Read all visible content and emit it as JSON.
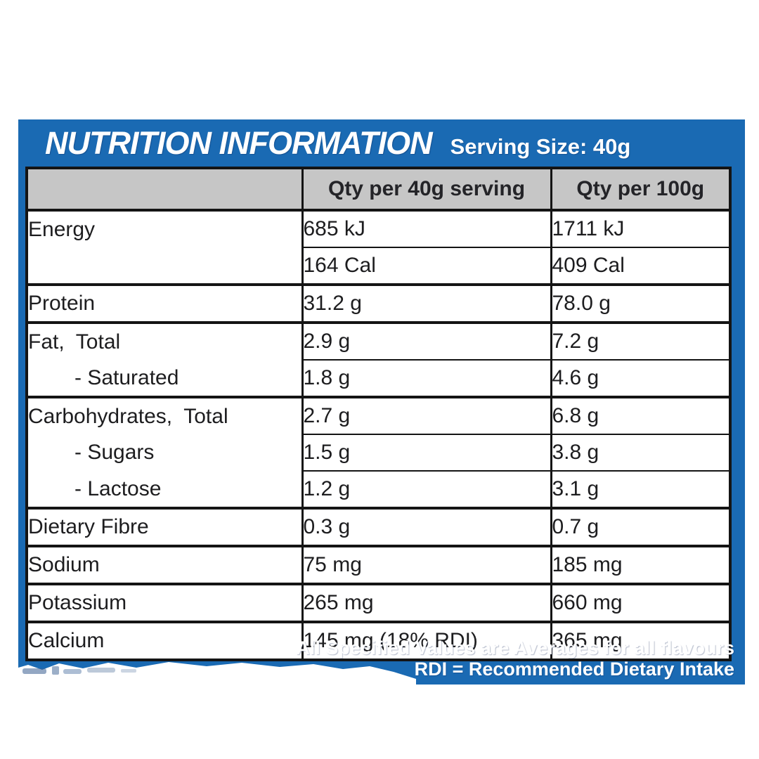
{
  "panel": {
    "title": "NUTRITION INFORMATION",
    "serving_size": "Serving Size: 40g",
    "footnotes": [
      "All Specified Values are Averages for all flavours",
      "RDI = Recommended Dietary Intake"
    ]
  },
  "table": {
    "columns": [
      "",
      "Qty per 40g serving",
      "Qty per 100g"
    ],
    "groups": [
      {
        "name": "energy",
        "rows": [
          {
            "label": "Energy",
            "indent": false,
            "qty40": "685 kJ",
            "qty100": "1711 kJ"
          },
          {
            "label": "",
            "indent": false,
            "qty40": "164 Cal",
            "qty100": "409 Cal"
          }
        ]
      },
      {
        "name": "protein",
        "rows": [
          {
            "label": "Protein",
            "indent": false,
            "qty40": "31.2 g",
            "qty100": "78.0 g"
          }
        ]
      },
      {
        "name": "fat",
        "rows": [
          {
            "label": "Fat,  Total",
            "indent": false,
            "qty40": "2.9 g",
            "qty100": "7.2 g"
          },
          {
            "label": "- Saturated",
            "indent": true,
            "qty40": "1.8 g",
            "qty100": "4.6 g"
          }
        ]
      },
      {
        "name": "carbohydrates",
        "rows": [
          {
            "label": "Carbohydrates,  Total",
            "indent": false,
            "qty40": "2.7 g",
            "qty100": "6.8 g"
          },
          {
            "label": "- Sugars",
            "indent": true,
            "qty40": "1.5 g",
            "qty100": "3.8 g"
          },
          {
            "label": "- Lactose",
            "indent": true,
            "qty40": "1.2 g",
            "qty100": "3.1 g"
          }
        ]
      },
      {
        "name": "dietary-fibre",
        "rows": [
          {
            "label": "Dietary Fibre",
            "indent": false,
            "qty40": "0.3 g",
            "qty100": "0.7 g"
          }
        ]
      },
      {
        "name": "sodium",
        "rows": [
          {
            "label": "Sodium",
            "indent": false,
            "qty40": "75 mg",
            "qty100": "185 mg"
          }
        ]
      },
      {
        "name": "potassium",
        "rows": [
          {
            "label": "Potassium",
            "indent": false,
            "qty40": "265 mg",
            "qty100": "660 mg"
          }
        ]
      },
      {
        "name": "calcium",
        "rows": [
          {
            "label": "Calcium",
            "indent": false,
            "qty40": "145 mg (18% RDI)",
            "qty100": "365 mg"
          }
        ]
      }
    ]
  },
  "colors": {
    "panel_blue": "#1a6ab3",
    "header_gray": "#c6c6c6",
    "border_black": "#141414",
    "text_dark": "#1d1d1f",
    "text_white": "#ffffff"
  }
}
